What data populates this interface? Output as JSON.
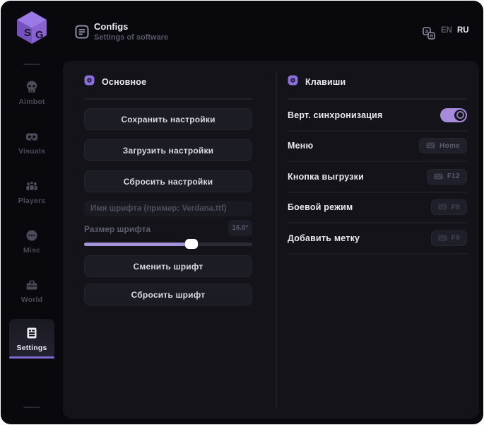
{
  "header": {
    "title": "Configs",
    "subtitle": "Settings of software",
    "lang_en": "EN",
    "lang_ru": "RU",
    "active_lang": "RU"
  },
  "sidebar": {
    "logo_text": "SG",
    "items": [
      {
        "label": "Aimbot",
        "icon": "skull-icon",
        "active": false
      },
      {
        "label": "Visuals",
        "icon": "vr-goggles-icon",
        "active": false
      },
      {
        "label": "Players",
        "icon": "people-icon",
        "active": false
      },
      {
        "label": "Misc",
        "icon": "sphere-dots-icon",
        "active": false
      },
      {
        "label": "World",
        "icon": "toolbox-icon",
        "active": false
      },
      {
        "label": "Settings",
        "icon": "list-icon",
        "active": true
      }
    ]
  },
  "main_panel": {
    "title": "Основное",
    "buttons": [
      "Сохранить настройки",
      "Загрузить настройки",
      "Сбросить настройки"
    ],
    "font_name_placeholder": "Имя шрифта (пример: Verdana.ttf)",
    "font_size_label": "Размер шрифта",
    "font_size_value": "16.0°",
    "slider_percent": 64,
    "font_buttons": [
      "Сменить шрифт",
      "Сбросить шрифт"
    ]
  },
  "keys_panel": {
    "title": "Клавиши",
    "rows": [
      {
        "label": "Верт. синхронизация",
        "control": "toggle",
        "state": "on"
      },
      {
        "label": "Меню",
        "control": "keybind",
        "key": "Home"
      },
      {
        "label": "Кнопка выгрузки",
        "control": "keybind",
        "key": "F12"
      },
      {
        "label": "Боевой режим",
        "control": "keybind",
        "key": "F8"
      },
      {
        "label": "Добавить метку",
        "control": "keybind",
        "key": "F9"
      }
    ]
  },
  "colors": {
    "accent_purple": "#a78bdc",
    "slider_fill": "#a493d9",
    "logo_purple": "#8a63d2",
    "nav_underline": "#7e68cf",
    "card_bg": "#131319",
    "window_bg": "#09090d",
    "button_bg": "#1c1c24",
    "badge_bg": "#1f1f29"
  }
}
